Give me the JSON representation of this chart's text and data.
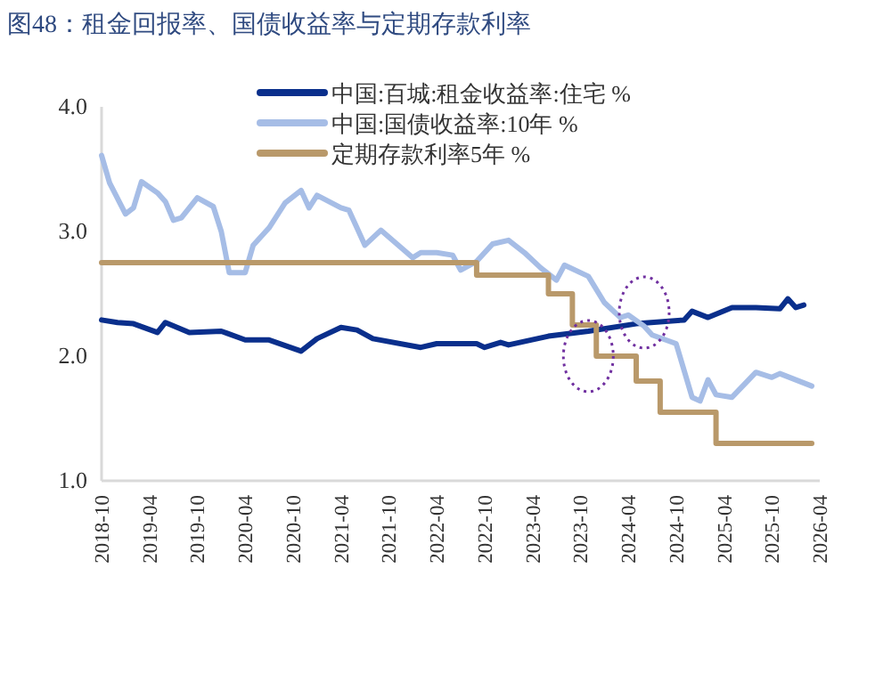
{
  "chart_data": {
    "type": "line",
    "title": "图48：租金回报率、国债收益率与定期存款利率",
    "xlim": [
      "2018-10",
      "2026-04"
    ],
    "xticks": [
      "2018-10",
      "2019-04",
      "2019-10",
      "2020-04",
      "2020-10",
      "2021-04",
      "2021-10",
      "2022-04",
      "2022-10",
      "2023-04",
      "2023-10",
      "2024-04",
      "2024-10",
      "2025-04",
      "2025-10",
      "2026-04"
    ],
    "ylim": [
      1,
      4
    ],
    "yticks": [
      {
        "value": 1,
        "label": "1.0"
      },
      {
        "value": 2,
        "label": "2.0"
      },
      {
        "value": 3,
        "label": "3.0"
      },
      {
        "value": 4,
        "label": "4.0"
      }
    ],
    "legend": "top right",
    "grid": false,
    "marker": "none",
    "line_style": "solid",
    "series": [
      {
        "name": "中国:百城:租金收益率:住宅 %",
        "color": "#0a2f8c",
        "type": "line",
        "x": [
          "2018-10",
          "2018-12",
          "2019-02",
          "2019-05",
          "2019-06",
          "2019-09",
          "2020-01",
          "2020-04",
          "2020-07",
          "2020-11",
          "2021-01",
          "2021-04",
          "2021-06",
          "2021-08",
          "2022-02",
          "2022-04",
          "2022-09",
          "2022-10",
          "2022-12",
          "2023-01",
          "2023-06",
          "2023-11",
          "2024-05",
          "2024-11",
          "2024-12",
          "2025-02",
          "2025-05",
          "2025-08",
          "2025-11",
          "2025-12",
          "2026-01",
          "2026-02"
        ],
        "values": [
          2.29,
          2.27,
          2.26,
          2.19,
          2.27,
          2.19,
          2.2,
          2.13,
          2.13,
          2.04,
          2.14,
          2.23,
          2.21,
          2.14,
          2.07,
          2.1,
          2.1,
          2.07,
          2.11,
          2.09,
          2.16,
          2.2,
          2.26,
          2.29,
          2.36,
          2.31,
          2.39,
          2.39,
          2.38,
          2.46,
          2.39,
          2.41
        ]
      },
      {
        "name": "中国:国债收益率:10年 %",
        "color": "#a6bde6",
        "type": "line",
        "x": [
          "2018-10",
          "2018-11",
          "2019-01",
          "2019-02",
          "2019-03",
          "2019-05",
          "2019-06",
          "2019-07",
          "2019-08",
          "2019-10",
          "2019-12",
          "2020-01",
          "2020-02",
          "2020-04",
          "2020-05",
          "2020-07",
          "2020-09",
          "2020-11",
          "2020-12",
          "2021-01",
          "2021-04",
          "2021-05",
          "2021-07",
          "2021-09",
          "2021-11",
          "2022-01",
          "2022-02",
          "2022-04",
          "2022-06",
          "2022-07",
          "2022-09",
          "2022-11",
          "2023-01",
          "2023-03",
          "2023-05",
          "2023-07",
          "2023-08",
          "2023-11",
          "2024-01",
          "2024-03",
          "2024-04",
          "2024-06",
          "2024-07",
          "2024-10",
          "2024-12",
          "2025-01",
          "2025-02",
          "2025-03",
          "2025-05",
          "2025-08",
          "2025-10",
          "2025-11",
          "2026-01",
          "2026-03"
        ],
        "values": [
          3.61,
          3.39,
          3.14,
          3.19,
          3.4,
          3.31,
          3.24,
          3.09,
          3.11,
          3.27,
          3.2,
          3.0,
          2.67,
          2.67,
          2.89,
          3.03,
          3.23,
          3.33,
          3.19,
          3.29,
          3.19,
          3.17,
          2.89,
          3.01,
          2.9,
          2.79,
          2.83,
          2.83,
          2.81,
          2.69,
          2.76,
          2.9,
          2.93,
          2.83,
          2.71,
          2.61,
          2.73,
          2.64,
          2.43,
          2.31,
          2.33,
          2.24,
          2.17,
          2.1,
          1.67,
          1.64,
          1.81,
          1.69,
          1.67,
          1.87,
          1.83,
          1.86,
          1.81,
          1.76
        ]
      },
      {
        "name": "定期存款利率5年 %",
        "color": "#b9996a",
        "type": "step",
        "x": [
          "2018-10",
          "2022-09",
          "2023-06",
          "2023-09",
          "2023-12",
          "2024-05",
          "2024-08",
          "2025-03",
          "2026-03"
        ],
        "values": [
          2.75,
          2.65,
          2.5,
          2.25,
          2.0,
          1.8,
          1.55,
          1.3,
          1.3
        ]
      }
    ]
  }
}
